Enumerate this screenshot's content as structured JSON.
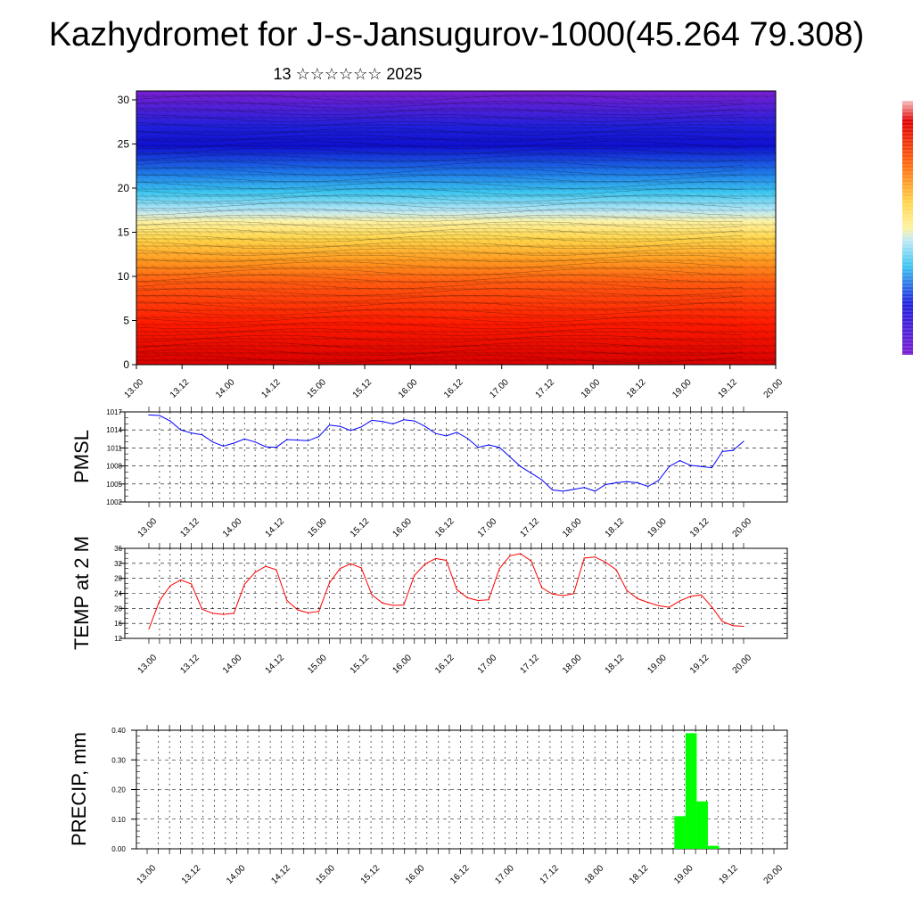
{
  "header": {
    "title": "Kazhydromet for J-s-Jansugurov-1000(45.264 79.308)",
    "subtitle": "13 ☆☆☆☆☆☆ 2025"
  },
  "x_tick_labels": [
    "13.00",
    "13.12",
    "14.00",
    "14.12",
    "15.00",
    "15.12",
    "16.00",
    "16.12",
    "17.00",
    "17.12",
    "18.00",
    "18.12",
    "19.00",
    "19.12",
    "20.00"
  ],
  "colors": {
    "pmsl_line": "#0000ff",
    "temp_line": "#ff0000",
    "precip_bar": "#00ff00",
    "grid": "#000000"
  },
  "chart_data": [
    {
      "type": "heatmap",
      "title": "",
      "ylim": [
        0,
        30
      ],
      "y_ticks": [
        0,
        5,
        10,
        15,
        20,
        25,
        30
      ],
      "x_categories": [
        "13.00",
        "13.12",
        "14.00",
        "14.12",
        "15.00",
        "15.12",
        "16.00",
        "16.12",
        "17.00",
        "17.12",
        "18.00",
        "18.12",
        "19.00",
        "19.12",
        "20.00"
      ],
      "colorscale": [
        "#7a1fd1",
        "#2a2adc",
        "#1f7ae8",
        "#3cc6f0",
        "#bfe9f5",
        "#fff2a0",
        "#ffd54a",
        "#ffa020",
        "#ff6a10",
        "#ff2a00",
        "#e00000"
      ],
      "overlay": "wind barbs and streamlines"
    },
    {
      "type": "line",
      "ylabel": "PMSL",
      "ylim": [
        1002,
        1017
      ],
      "y_ticks": [
        1002,
        1005,
        1008,
        1011,
        1014,
        1017
      ],
      "x_hours": [
        0,
        3,
        6,
        9,
        12,
        15,
        18,
        21,
        24,
        27,
        30,
        33,
        36,
        39,
        42,
        45,
        48,
        51,
        54,
        57,
        60,
        63,
        66,
        69,
        72,
        75,
        78,
        81,
        84,
        87,
        90,
        93,
        96,
        99,
        102,
        105,
        108,
        111,
        114,
        117,
        120,
        123,
        126,
        129,
        132,
        135,
        138,
        141,
        144,
        147,
        150,
        153,
        156,
        159,
        162,
        165,
        168
      ],
      "values": [
        1016.5,
        1016.4,
        1015.5,
        1014,
        1013.5,
        1013.2,
        1012,
        1011.3,
        1011.8,
        1012.5,
        1012,
        1011.2,
        1011.1,
        1012.4,
        1012.3,
        1012.2,
        1012.9,
        1014.8,
        1014.6,
        1013.9,
        1014.5,
        1015.6,
        1015.4,
        1015,
        1015.7,
        1015.5,
        1014.6,
        1013.4,
        1013,
        1013.6,
        1012.6,
        1011.1,
        1011.5,
        1011.1,
        1009.5,
        1007.9,
        1006.8,
        1005.7,
        1004,
        1003.8,
        1004.1,
        1004.4,
        1003.8,
        1004.9,
        1005.2,
        1005.4,
        1005.2,
        1004.6,
        1005.6,
        1007.9,
        1008.9,
        1008.1,
        1007.9,
        1007.7,
        1010.4,
        1010.6,
        1012.1
      ]
    },
    {
      "type": "line",
      "ylabel": "TEMP at 2 M",
      "ylim": [
        12,
        36
      ],
      "y_ticks": [
        12,
        16,
        20,
        24,
        28,
        32,
        36
      ],
      "x_hours": [
        0,
        3,
        6,
        9,
        12,
        15,
        18,
        21,
        24,
        27,
        30,
        33,
        36,
        39,
        42,
        45,
        48,
        51,
        54,
        57,
        60,
        63,
        66,
        69,
        72,
        75,
        78,
        81,
        84,
        87,
        90,
        93,
        96,
        99,
        102,
        105,
        108,
        111,
        114,
        117,
        120,
        123,
        126,
        129,
        132,
        135,
        138,
        141,
        144,
        147,
        150,
        153,
        156,
        159,
        162,
        165,
        168
      ],
      "values": [
        14.5,
        22,
        26,
        27.6,
        26.5,
        19.8,
        18.7,
        18.4,
        18.7,
        26.4,
        29.6,
        31.2,
        30.3,
        22.1,
        19.6,
        18.8,
        19.2,
        26.8,
        30.6,
        31.9,
        30.8,
        23.6,
        21.4,
        20.8,
        20.9,
        28.8,
        31.8,
        33.3,
        32.8,
        25,
        22.8,
        22.1,
        22.3,
        30.6,
        34,
        34.6,
        32.6,
        25.5,
        23.8,
        23.4,
        23.9,
        33.4,
        33.7,
        32.3,
        30.3,
        24.8,
        22.6,
        21.6,
        20.7,
        20.3,
        22,
        23.2,
        23.6,
        20.4,
        16.5,
        15.4,
        15.2
      ]
    },
    {
      "type": "bar",
      "ylabel": "PRECIP, mm",
      "ylim": [
        0,
        0.4
      ],
      "y_ticks": [
        "0.00",
        "0.10",
        "0.20",
        "0.30",
        "0.40"
      ],
      "x_hours": [
        144,
        147,
        150,
        153
      ],
      "values": [
        0.11,
        0.39,
        0.16,
        0.01
      ]
    }
  ]
}
